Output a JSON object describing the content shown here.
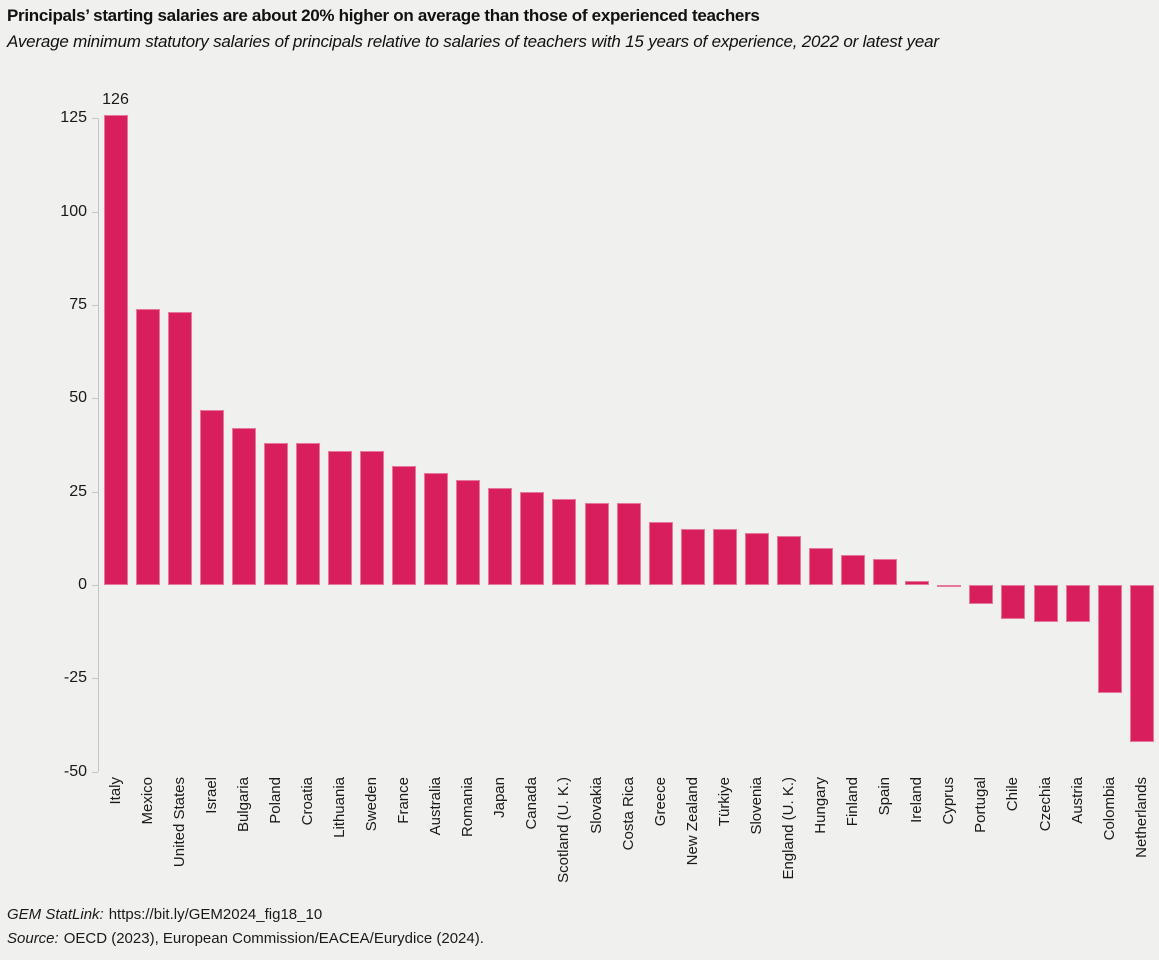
{
  "header": {
    "title": "Principals’ starting salaries are about 20% higher on average than those of experienced teachers",
    "subtitle": "Average minimum statutory salaries of principals relative to salaries of teachers with 15 years of experience, 2022 or latest year"
  },
  "footer": {
    "statlink_label": "GEM StatLink:",
    "statlink_url": "https://bit.ly/GEM2024_fig18_10",
    "source_label": "Source:",
    "source_text": "OECD (2023), European Commission/EACEA/Eurydice (2024)."
  },
  "chart_data": {
    "type": "bar",
    "title": "Principals’ starting salaries are about 20% higher on average than those of experienced teachers",
    "subtitle": "Average minimum statutory salaries of principals relative to salaries of teachers with 15 years of experience, 2022 or latest year",
    "xlabel": "",
    "ylabel": "",
    "ylim": [
      -50,
      130
    ],
    "y_ticks": [
      125,
      100,
      75,
      50,
      25,
      0,
      -25,
      -50
    ],
    "grid": false,
    "legend": null,
    "bar_color": "#d81e5c",
    "bar_edge_color": "rgba(255,255,255,0.4)",
    "axis_color": "#c6c6c4",
    "text_color": "#1a1a1a",
    "background_color": "#f0f0ee",
    "categories": [
      "Italy",
      "Mexico",
      "United States",
      "Israel",
      "Bulgaria",
      "Poland",
      "Croatia",
      "Lithuania",
      "Sweden",
      "France",
      "Australia",
      "Romania",
      "Japan",
      "Canada",
      "Scotland (U. K.)",
      "Slovakia",
      "Costa Rica",
      "Greece",
      "New Zealand",
      "Türkiye",
      "Slovenia",
      "England (U. K.)",
      "Hungary",
      "Finland",
      "Spain",
      "Ireland",
      "Cyprus",
      "Portugal",
      "Chile",
      "Czechia",
      "Austria",
      "Colombia",
      "Netherlands"
    ],
    "values": [
      126,
      74,
      73,
      47,
      42,
      38,
      38,
      36,
      36,
      32,
      30,
      28,
      26,
      25,
      23,
      22,
      22,
      17,
      15,
      15,
      14,
      13,
      10,
      8,
      7,
      1,
      -0.5,
      -5,
      -9,
      -10,
      -10,
      -29,
      -42
    ],
    "annotations": [
      {
        "category": "Italy",
        "text": "126"
      }
    ]
  }
}
